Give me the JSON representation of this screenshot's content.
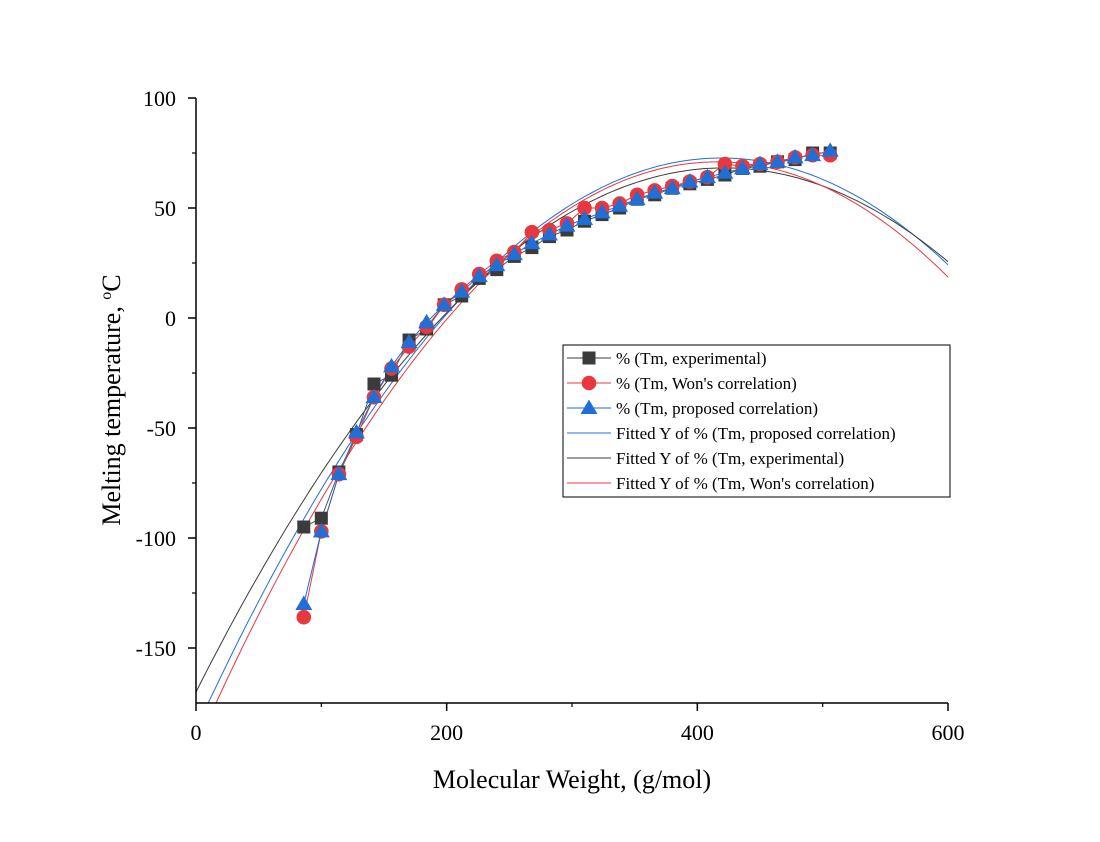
{
  "chart_data": {
    "type": "scatter",
    "title": "",
    "xlabel": "Molecular Weight, (g/mol)",
    "ylabel_main": "Melting temperature, ",
    "ylabel_sup": "o",
    "ylabel_unit": "C",
    "xlim": [
      0,
      600
    ],
    "ylim": [
      -175,
      100
    ],
    "xticks": [
      0,
      200,
      400,
      600
    ],
    "yticks": [
      -150,
      -100,
      -50,
      0,
      50,
      100
    ],
    "xtick_labels": [
      "0",
      "200",
      "400",
      "600"
    ],
    "ytick_labels": [
      "-150",
      "-100",
      "-50",
      "0",
      "50",
      "100"
    ],
    "legend_position": "center-right",
    "series": [
      {
        "name": "% (Tm, experimental)",
        "marker": "square",
        "color": "#3b3b3b",
        "line_color": "#555555",
        "x": [
          86,
          100,
          114,
          128,
          142,
          156,
          170,
          184,
          198,
          212,
          226,
          240,
          254,
          268,
          282,
          296,
          310,
          324,
          338,
          352,
          366,
          380,
          394,
          408,
          422,
          436,
          450,
          464,
          478,
          492,
          506
        ],
        "y": [
          -95,
          -91,
          -70,
          -53,
          -30,
          -26,
          -10,
          -5,
          6,
          10,
          18,
          22,
          28,
          32,
          37,
          40,
          44,
          47,
          50,
          54,
          56,
          59,
          61,
          63,
          65,
          68,
          69,
          71,
          72,
          75,
          75
        ]
      },
      {
        "name": "% (Tm, Won's correlation)",
        "marker": "circle",
        "color": "#e8383d",
        "line_color": "#e8383d",
        "x": [
          86,
          100,
          114,
          128,
          142,
          156,
          170,
          184,
          198,
          212,
          226,
          240,
          254,
          268,
          282,
          296,
          310,
          324,
          338,
          352,
          366,
          380,
          394,
          408,
          422,
          436,
          450,
          464,
          478,
          492,
          506
        ],
        "y": [
          -136,
          -97,
          -71,
          -54,
          -36,
          -23,
          -13,
          -4,
          6,
          13,
          20,
          26,
          30,
          39,
          40,
          43,
          50,
          50,
          52,
          56,
          58,
          60,
          62,
          64,
          70,
          69,
          70,
          71,
          73,
          74,
          74
        ]
      },
      {
        "name": "% (Tm, proposed correlation)",
        "marker": "triangle",
        "color": "#1f6fd6",
        "line_color": "#1f6fd6",
        "x": [
          86,
          100,
          114,
          128,
          142,
          156,
          170,
          184,
          198,
          212,
          226,
          240,
          254,
          268,
          282,
          296,
          310,
          324,
          338,
          352,
          366,
          380,
          394,
          408,
          422,
          436,
          450,
          464,
          478,
          492,
          506
        ],
        "y": [
          -130,
          -97,
          -71,
          -52,
          -36,
          -22,
          -11,
          -2,
          6,
          12,
          19,
          24,
          29,
          34,
          38,
          42,
          45,
          48,
          51,
          54,
          57,
          59,
          62,
          64,
          66,
          68,
          70,
          71,
          73,
          74,
          76
        ]
      }
    ],
    "fits": [
      {
        "name": "Fitted Y of % (Tm, proposed correlation)",
        "color": "#1f6fd6",
        "coef": [
          -187,
          1.24,
          -0.00148
        ]
      },
      {
        "name": "Fitted Y of % (Tm, experimental)",
        "color": "#3b3b3b",
        "coef": [
          -170,
          1.13,
          -0.00134
        ]
      },
      {
        "name": "Fitted Y of % (Tm, Won's correlation)",
        "color": "#e8383d",
        "coef": [
          -195,
          1.28,
          -0.00154
        ]
      }
    ]
  }
}
